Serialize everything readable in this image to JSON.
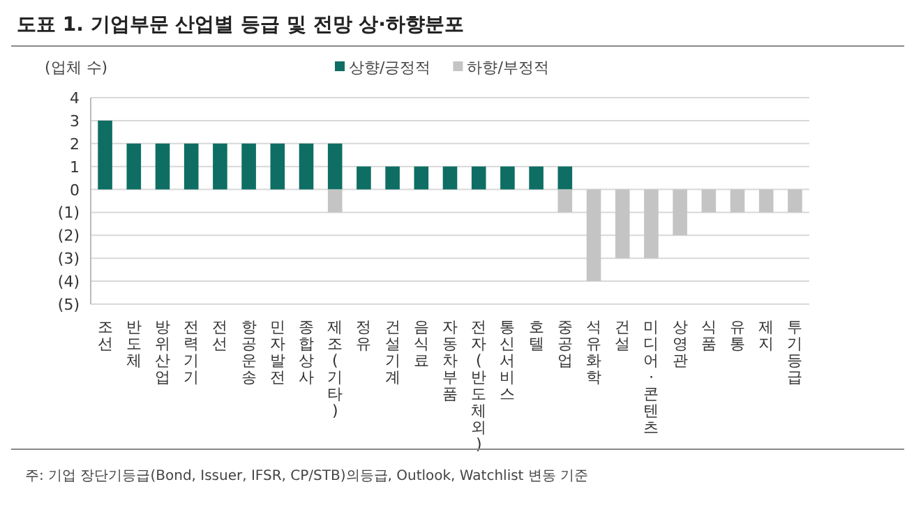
{
  "chart_data": {
    "type": "bar",
    "title": "도표 1. 기업부문 산업별 등급 및 전망 상·하향분포",
    "ylabel": "(업체 수)",
    "categories": [
      "조선",
      "반도체",
      "방위산업",
      "전력기기",
      "전선",
      "항공운송",
      "민자발전",
      "종합상사",
      "제조(기타)",
      "정유",
      "건설기계",
      "음식료",
      "자동차부품",
      "전자(반도체외)",
      "통신서비스",
      "호텔",
      "중공업",
      "석유화학",
      "건설",
      "미디어·콘텐츠",
      "상영관",
      "식품",
      "유통",
      "제지",
      "투기등급"
    ],
    "series": [
      {
        "name": "상향/긍정적",
        "color": "#0e6e63",
        "values": [
          3,
          2,
          2,
          2,
          2,
          2,
          2,
          2,
          2,
          1,
          1,
          1,
          1,
          1,
          1,
          1,
          1,
          null,
          null,
          null,
          null,
          null,
          null,
          null,
          null
        ]
      },
      {
        "name": "하향/부정적",
        "color": "#c4c4c4",
        "values": [
          null,
          null,
          null,
          null,
          null,
          null,
          null,
          null,
          -1,
          null,
          null,
          null,
          null,
          null,
          null,
          null,
          -1,
          -4,
          -3,
          -3,
          -2,
          -1,
          -1,
          -1,
          -1
        ]
      }
    ],
    "stacked": true,
    "ylim": [
      -5,
      4
    ],
    "yticks": [
      4,
      3,
      2,
      1,
      0,
      {
        "value": -1,
        "label": "(1)"
      },
      {
        "value": -2,
        "label": "(2)"
      },
      {
        "value": -3,
        "label": "(3)"
      },
      {
        "value": -4,
        "label": "(4)"
      },
      {
        "value": -5,
        "label": "(5)"
      }
    ],
    "grid": "y",
    "legend": "top",
    "annotations": [
      "주: 기업 장단기등급(Bond, Issuer, IFSR, CP/STB)의등급, Outlook, Watchlist 변동 기준"
    ]
  }
}
